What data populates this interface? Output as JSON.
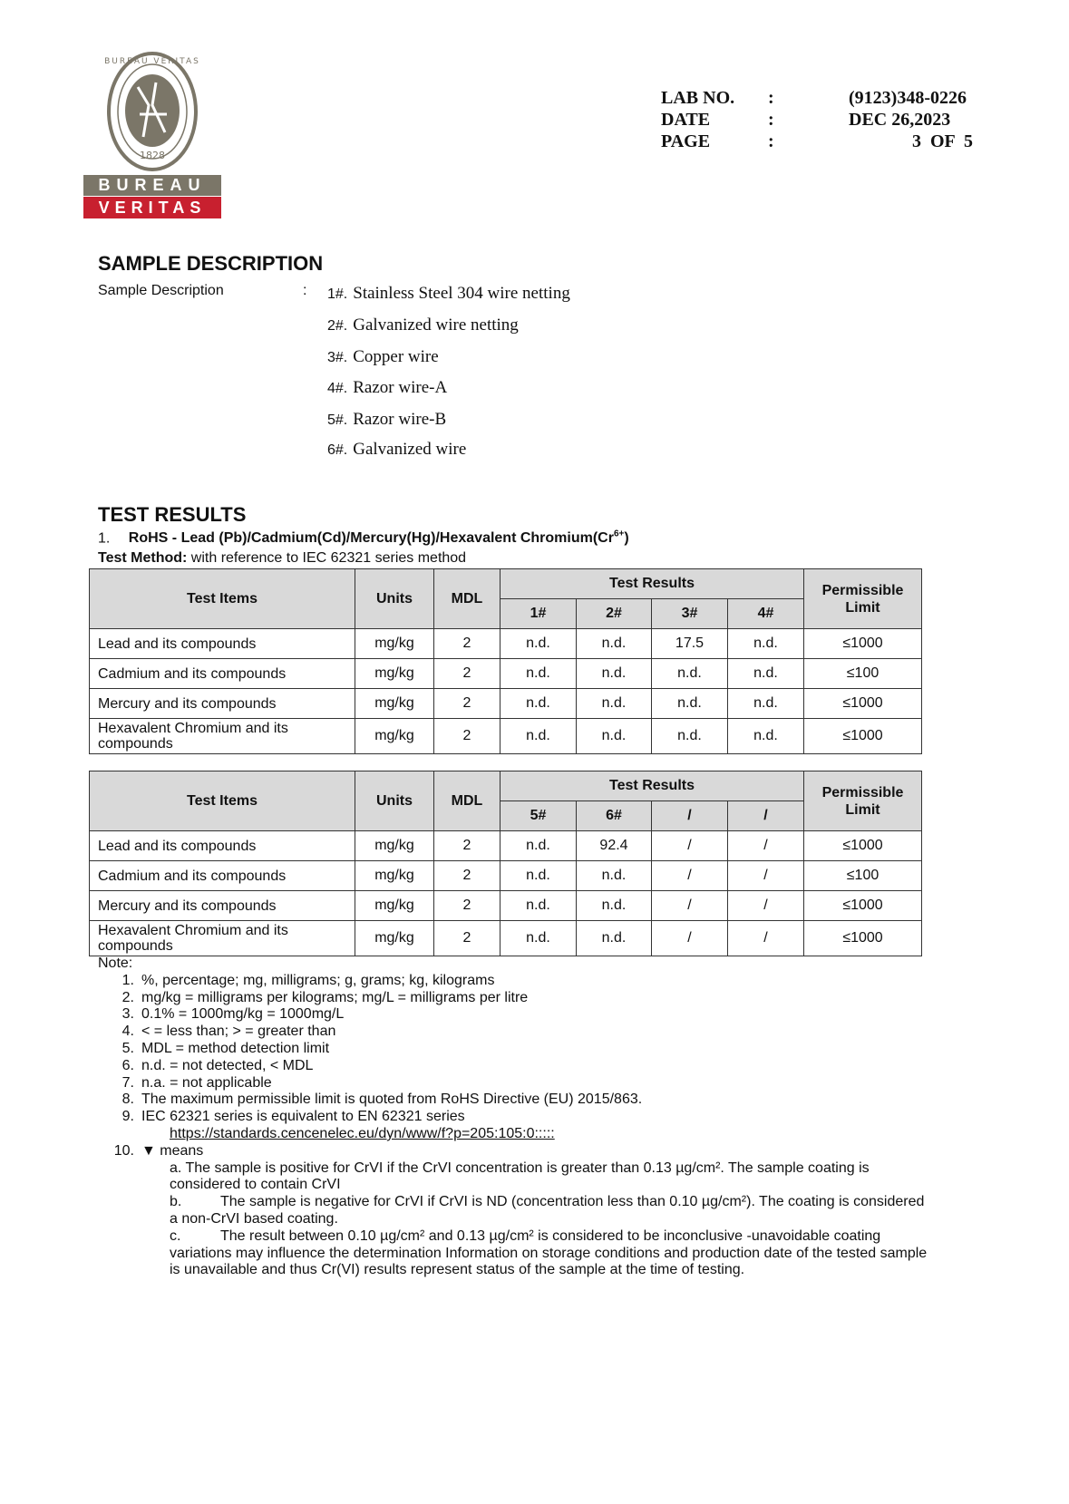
{
  "logo": {
    "ring_text": "BUREAU VERITAS",
    "year": "1828",
    "line1": "BUREAU",
    "line2": "VERITAS",
    "colors": {
      "gray": "#7b7668",
      "red": "#c8202f"
    }
  },
  "header": {
    "rows": [
      {
        "label": "LAB NO.",
        "sep": ":",
        "value": "(9123)348-0226"
      },
      {
        "label": "DATE",
        "sep": ":",
        "value": "DEC 26,2023"
      },
      {
        "label": "PAGE",
        "sep": ":",
        "value": "3  OF  5"
      }
    ]
  },
  "sample_description": {
    "heading": "SAMPLE DESCRIPTION",
    "label": "Sample Description",
    "sep": ":",
    "items": [
      {
        "num": "1#.",
        "text": "Stainless Steel 304 wire netting"
      },
      {
        "num": "2#.",
        "text": "Galvanized wire netting"
      },
      {
        "num": "3#.",
        "text": "Copper wire"
      },
      {
        "num": "4#.",
        "text": "Razor wire-A"
      },
      {
        "num": "5#.",
        "text": "Razor wire-B"
      },
      {
        "num": "6#.",
        "text": "Galvanized wire"
      }
    ]
  },
  "test_results": {
    "heading": "TEST RESULTS",
    "item_num": "1.",
    "item_title": "RoHS - Lead (Pb)/Cadmium(Cd)/Mercury(Hg)/Hexavalent Chromium(Cr",
    "item_title_sup": "6+",
    "item_title_end": ")",
    "method_label": "Test Method:",
    "method_text": " with reference to IEC 62321 series method",
    "columns": {
      "items": "Test Items",
      "units": "Units",
      "mdl": "MDL",
      "results": "Test Results",
      "limit": "Permissible Limit"
    },
    "tables": [
      {
        "samples": [
          "1#",
          "2#",
          "3#",
          "4#"
        ],
        "rows": [
          {
            "item": "Lead and its compounds",
            "units": "mg/kg",
            "mdl": "2",
            "values": [
              "n.d.",
              "n.d.",
              "17.5",
              "n.d."
            ],
            "limit": "≤1000"
          },
          {
            "item": "Cadmium and its compounds",
            "units": "mg/kg",
            "mdl": "2",
            "values": [
              "n.d.",
              "n.d.",
              "n.d.",
              "n.d."
            ],
            "limit": "≤100"
          },
          {
            "item": "Mercury and its compounds",
            "units": "mg/kg",
            "mdl": "2",
            "values": [
              "n.d.",
              "n.d.",
              "n.d.",
              "n.d."
            ],
            "limit": "≤1000"
          },
          {
            "item": "Hexavalent Chromium and its compounds",
            "units": "mg/kg",
            "mdl": "2",
            "values": [
              "n.d.",
              "n.d.",
              "n.d.",
              "n.d."
            ],
            "limit": "≤1000"
          }
        ]
      },
      {
        "samples": [
          "5#",
          "6#",
          "/",
          "/"
        ],
        "rows": [
          {
            "item": "Lead and its compounds",
            "units": "mg/kg",
            "mdl": "2",
            "values": [
              "n.d.",
              "92.4",
              "/",
              "/"
            ],
            "limit": "≤1000"
          },
          {
            "item": "Cadmium and its compounds",
            "units": "mg/kg",
            "mdl": "2",
            "values": [
              "n.d.",
              "n.d.",
              "/",
              "/"
            ],
            "limit": "≤100"
          },
          {
            "item": "Mercury and its compounds",
            "units": "mg/kg",
            "mdl": "2",
            "values": [
              "n.d.",
              "n.d.",
              "/",
              "/"
            ],
            "limit": "≤1000"
          },
          {
            "item": "Hexavalent Chromium and its compounds",
            "units": "mg/kg",
            "mdl": "2",
            "values": [
              "n.d.",
              "n.d.",
              "/",
              "/"
            ],
            "limit": "≤1000"
          }
        ]
      }
    ]
  },
  "notes": {
    "label": "Note:",
    "items": [
      {
        "n": "1.",
        "t": "%, percentage; mg, milligrams; g, grams; kg, kilograms"
      },
      {
        "n": "2.",
        "t": "mg/kg = milligrams per kilograms; mg/L = milligrams per litre"
      },
      {
        "n": "3.",
        "t": "0.1% = 1000mg/kg = 1000mg/L"
      },
      {
        "n": "4.",
        "t": "< = less than; > = greater than"
      },
      {
        "n": "5.",
        "t": "MDL = method detection limit"
      },
      {
        "n": "6.",
        "t": "n.d. = not detected, < MDL"
      },
      {
        "n": "7.",
        "t": "n.a. = not applicable"
      },
      {
        "n": "8.",
        "t": "The maximum permissible limit is quoted from RoHS Directive (EU) 2015/863."
      },
      {
        "n": "9.",
        "t": "IEC 62321 series is equivalent to EN 62321 series"
      }
    ],
    "link": "https://standards.cencenelec.eu/dyn/www/f?p=205:105:0:::::",
    "n10": "10.",
    "n10_text": "▼ means",
    "a": "a. The sample is positive for CrVI if the CrVI concentration is greater than 0.13 µg/cm². The sample coating is considered to contain CrVI",
    "b_label": "b.",
    "b": "The sample is negative for CrVI if CrVI is ND (concentration less than 0.10 µg/cm²). The coating is considered a non-CrVI based coating.",
    "c_label": "c.",
    "c": "The result between 0.10 µg/cm² and 0.13 µg/cm² is considered to be inconclusive -unavoidable coating variations may influence the determination Information on storage conditions and production date of the tested sample is unavailable and thus Cr(VI) results represent status of the sample at the time of testing."
  }
}
